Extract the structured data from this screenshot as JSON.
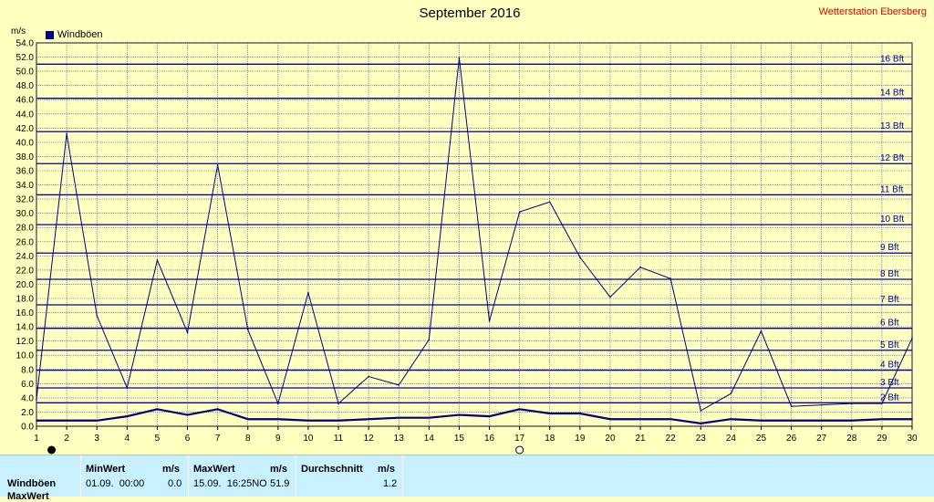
{
  "header": {
    "title": "September 2016",
    "station": "Wetterstation Ebersberg",
    "unit": "m/s",
    "legend_label": "Windböen"
  },
  "colors": {
    "background": "#ffffc0",
    "series": "#000080",
    "grid_minor": "#4040c0",
    "grid_bft": "#0000a0",
    "station_text": "#e00000",
    "panel": "#c8f0ff"
  },
  "chart_data": {
    "type": "line",
    "title": "September 2016",
    "ylabel": "m/s",
    "ylim": [
      0,
      54
    ],
    "yticks": [
      "0.0",
      "2.0",
      "4.0",
      "6.0",
      "8.0",
      "10.0",
      "12.0",
      "14.0",
      "16.0",
      "18.0",
      "20.0",
      "22.0",
      "24.0",
      "26.0",
      "28.0",
      "30.0",
      "32.0",
      "34.0",
      "36.0",
      "38.0",
      "40.0",
      "42.0",
      "44.0",
      "46.0",
      "48.0",
      "50.0",
      "52.0",
      "54.0"
    ],
    "x": [
      1,
      2,
      3,
      4,
      5,
      6,
      7,
      8,
      9,
      10,
      11,
      12,
      13,
      14,
      15,
      16,
      17,
      18,
      19,
      20,
      21,
      22,
      23,
      24,
      25,
      26,
      27,
      28,
      29,
      30
    ],
    "series": [
      {
        "name": "Windböen",
        "values": [
          3.8,
          41.2,
          15.6,
          5.4,
          23.4,
          13.2,
          36.8,
          13.6,
          3.2,
          18.8,
          3.2,
          7.0,
          5.8,
          12.2,
          51.9,
          14.8,
          30.2,
          31.6,
          23.8,
          18.2,
          22.4,
          20.8,
          2.2,
          4.6,
          13.4,
          2.8,
          3.0,
          3.2,
          3.2,
          12.4
        ]
      },
      {
        "values": [
          0.8,
          0.8,
          0.8,
          1.4,
          2.4,
          1.6,
          2.4,
          1.0,
          1.0,
          0.8,
          0.8,
          1.0,
          1.2,
          1.2,
          1.6,
          1.4,
          2.4,
          1.8,
          1.8,
          1.0,
          1.0,
          1.0,
          0.4,
          1.0,
          0.8,
          0.8,
          0.8,
          0.8,
          1.0,
          1.0
        ]
      }
    ],
    "bft_lines": [
      {
        "label": "2 Bft",
        "value": 3.3
      },
      {
        "label": "3 Bft",
        "value": 5.4
      },
      {
        "label": "4 Bft",
        "value": 7.9
      },
      {
        "label": "5 Bft",
        "value": 10.7
      },
      {
        "label": "6 Bft",
        "value": 13.8
      },
      {
        "label": "7 Bft",
        "value": 17.1
      },
      {
        "label": "8 Bft",
        "value": 20.7
      },
      {
        "label": "9 Bft",
        "value": 24.4
      },
      {
        "label": "10 Bft",
        "value": 28.4
      },
      {
        "label": "11 Bft",
        "value": 32.6
      },
      {
        "label": "12 Bft",
        "value": 37.0
      },
      {
        "label": "13 Bft",
        "value": 41.5
      },
      {
        "label": "14 Bft",
        "value": 46.2
      },
      {
        "label": "16 Bft",
        "value": 51.0
      }
    ],
    "markers": [
      {
        "x": 1.5,
        "symbol": "filled-circle"
      },
      {
        "x": 17,
        "symbol": "open-circle"
      }
    ],
    "grid": true
  },
  "stats": {
    "row_label": "Windböen",
    "row2_label": "MaxWert",
    "min_header": "MinWert",
    "min_unit": "m/s",
    "min_date": "01.09.  00:00",
    "min_value": "0.0",
    "max_header": "MaxWert",
    "max_unit": "m/s",
    "max_date": "15.09.  16:25NO",
    "max_value": "51.9",
    "avg_header": "Durchschnitt",
    "avg_unit": "m/s",
    "avg_value": "1.2"
  }
}
